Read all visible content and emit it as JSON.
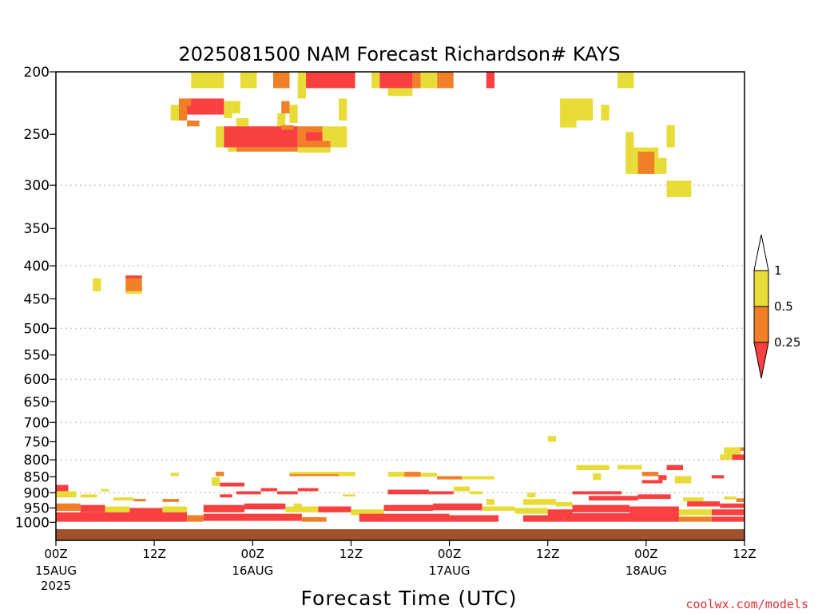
{
  "chart_data": {
    "type": "heatmap",
    "title": "2025081500 NAM Forecast Richardson# KAYS",
    "xlabel": "Forecast Time (UTC)",
    "ylabel": "",
    "y_scale": "log-pressure",
    "y_axis_unit_implied": "hPa",
    "ylim": [
      1025,
      200
    ],
    "xlim_hours": [
      0,
      84
    ],
    "grid": "horizontal dotted at 300, 400, 500, 600, 700, 800, 900 hPa",
    "y_ticks": [
      200,
      250,
      300,
      350,
      400,
      450,
      500,
      550,
      600,
      650,
      700,
      750,
      800,
      850,
      900,
      950,
      1000
    ],
    "x_ticks": [
      {
        "hour": 0,
        "label": "00Z",
        "sub": "15AUG",
        "sub2": "2025"
      },
      {
        "hour": 12,
        "label": "12Z",
        "sub": "",
        "sub2": ""
      },
      {
        "hour": 24,
        "label": "00Z",
        "sub": "16AUG",
        "sub2": ""
      },
      {
        "hour": 36,
        "label": "12Z",
        "sub": "",
        "sub2": ""
      },
      {
        "hour": 48,
        "label": "00Z",
        "sub": "17AUG",
        "sub2": ""
      },
      {
        "hour": 60,
        "label": "12Z",
        "sub": "",
        "sub2": ""
      },
      {
        "hour": 72,
        "label": "00Z",
        "sub": "18AUG",
        "sub2": ""
      },
      {
        "hour": 84,
        "label": "12Z",
        "sub": "",
        "sub2": ""
      }
    ],
    "colorbar": {
      "labels": [
        "1",
        "0.5",
        "0.25"
      ],
      "bins": [
        {
          "range": "<0.25",
          "color": "#f84040"
        },
        {
          "range": "0.25-0.5",
          "color": "#f08028"
        },
        {
          "range": "0.5-1",
          "color": "#e8dc38"
        },
        {
          "range": ">1",
          "color": "#ffffff"
        }
      ]
    },
    "ground_color": "#a0522d",
    "cells": [
      {
        "h0": 16.5,
        "h1": 20.5,
        "p0": 200,
        "p1": 212,
        "c": "y"
      },
      {
        "h0": 22.5,
        "h1": 24.5,
        "p0": 200,
        "p1": 212,
        "c": "y"
      },
      {
        "h0": 26.5,
        "h1": 28.5,
        "p0": 200,
        "p1": 212,
        "c": "o"
      },
      {
        "h0": 29.5,
        "h1": 30.5,
        "p0": 200,
        "p1": 212,
        "c": "y"
      },
      {
        "h0": 30.5,
        "h1": 36.5,
        "p0": 200,
        "p1": 212,
        "c": "r"
      },
      {
        "h0": 38.5,
        "h1": 39.5,
        "p0": 200,
        "p1": 212,
        "c": "y"
      },
      {
        "h0": 39.5,
        "h1": 43.5,
        "p0": 200,
        "p1": 212,
        "c": "r"
      },
      {
        "h0": 43.5,
        "h1": 44.5,
        "p0": 200,
        "p1": 212,
        "c": "o"
      },
      {
        "h0": 44.5,
        "h1": 46.5,
        "p0": 200,
        "p1": 212,
        "c": "y"
      },
      {
        "h0": 46.5,
        "h1": 48.5,
        "p0": 200,
        "p1": 212,
        "c": "o"
      },
      {
        "h0": 52.5,
        "h1": 53.5,
        "p0": 200,
        "p1": 212,
        "c": "r"
      },
      {
        "h0": 68.5,
        "h1": 70.5,
        "p0": 200,
        "p1": 212,
        "c": "y"
      },
      {
        "h0": 29.5,
        "h1": 30.5,
        "p0": 212,
        "p1": 220,
        "c": "y"
      },
      {
        "h0": 40.5,
        "h1": 43.5,
        "p0": 212,
        "p1": 218,
        "c": "y"
      },
      {
        "h0": 15.5,
        "h1": 19.5,
        "p0": 220,
        "p1": 233,
        "c": "r"
      },
      {
        "h0": 15.0,
        "h1": 16.5,
        "p0": 220,
        "p1": 226,
        "c": "o"
      },
      {
        "h0": 19.5,
        "h1": 20.5,
        "p0": 220,
        "p1": 233,
        "c": "r"
      },
      {
        "h0": 14.0,
        "h1": 15.0,
        "p0": 225,
        "p1": 238,
        "c": "y"
      },
      {
        "h0": 15.0,
        "h1": 16.0,
        "p0": 225,
        "p1": 238,
        "c": "o"
      },
      {
        "h0": 16.0,
        "h1": 17.5,
        "p0": 238,
        "p1": 243,
        "c": "o"
      },
      {
        "h0": 20.5,
        "h1": 21.5,
        "p0": 222,
        "p1": 236,
        "c": "y"
      },
      {
        "h0": 21.5,
        "h1": 22.5,
        "p0": 222,
        "p1": 232,
        "c": "y"
      },
      {
        "h0": 22.0,
        "h1": 23.5,
        "p0": 236,
        "p1": 243,
        "c": "y"
      },
      {
        "h0": 27.5,
        "h1": 28.5,
        "p0": 222,
        "p1": 232,
        "c": "o"
      },
      {
        "h0": 27.0,
        "h1": 28.0,
        "p0": 232,
        "p1": 243,
        "c": "y"
      },
      {
        "h0": 28.5,
        "h1": 29.5,
        "p0": 225,
        "p1": 240,
        "c": "y"
      },
      {
        "h0": 34.5,
        "h1": 35.5,
        "p0": 220,
        "p1": 238,
        "c": "y"
      },
      {
        "h0": 61.5,
        "h1": 65.5,
        "p0": 220,
        "p1": 238,
        "c": "y"
      },
      {
        "h0": 61.5,
        "h1": 63.5,
        "p0": 238,
        "p1": 244,
        "c": "y"
      },
      {
        "h0": 66.5,
        "h1": 67.5,
        "p0": 225,
        "p1": 238,
        "c": "y"
      },
      {
        "h0": 19.5,
        "h1": 20.5,
        "p0": 243,
        "p1": 262,
        "c": "y"
      },
      {
        "h0": 20.5,
        "h1": 29.5,
        "p0": 243,
        "p1": 262,
        "c": "r"
      },
      {
        "h0": 22.0,
        "h1": 29.5,
        "p0": 262,
        "p1": 266,
        "c": "o"
      },
      {
        "h0": 21.0,
        "h1": 22.0,
        "p0": 262,
        "p1": 266,
        "c": "y"
      },
      {
        "h0": 27.5,
        "h1": 29.0,
        "p0": 242,
        "p1": 246,
        "c": "o"
      },
      {
        "h0": 29.5,
        "h1": 30.5,
        "p0": 243,
        "p1": 262,
        "c": "o"
      },
      {
        "h0": 30.5,
        "h1": 32.5,
        "p0": 248,
        "p1": 256,
        "c": "r"
      },
      {
        "h0": 30.5,
        "h1": 33.5,
        "p0": 256,
        "p1": 262,
        "c": "o"
      },
      {
        "h0": 30.5,
        "h1": 32.5,
        "p0": 243,
        "p1": 248,
        "c": "o"
      },
      {
        "h0": 32.5,
        "h1": 34.5,
        "p0": 243,
        "p1": 256,
        "c": "y"
      },
      {
        "h0": 33.5,
        "h1": 34.5,
        "p0": 256,
        "p1": 262,
        "c": "y"
      },
      {
        "h0": 34.5,
        "h1": 35.5,
        "p0": 243,
        "p1": 262,
        "c": "y"
      },
      {
        "h0": 29.5,
        "h1": 33.5,
        "p0": 262,
        "p1": 267,
        "c": "y"
      },
      {
        "h0": 69.5,
        "h1": 70.5,
        "p0": 248,
        "p1": 288,
        "c": "y"
      },
      {
        "h0": 70.5,
        "h1": 73.5,
        "p0": 262,
        "p1": 288,
        "c": "y"
      },
      {
        "h0": 71.0,
        "h1": 73.0,
        "p0": 266,
        "p1": 288,
        "c": "o"
      },
      {
        "h0": 73.5,
        "h1": 74.5,
        "p0": 272,
        "p1": 288,
        "c": "y"
      },
      {
        "h0": 74.5,
        "h1": 75.5,
        "p0": 242,
        "p1": 262,
        "c": "y"
      },
      {
        "h0": 74.5,
        "h1": 77.5,
        "p0": 295,
        "p1": 313,
        "c": "y"
      },
      {
        "h0": 4.5,
        "h1": 5.5,
        "p0": 418,
        "p1": 438,
        "c": "y"
      },
      {
        "h0": 8.5,
        "h1": 10.5,
        "p0": 418,
        "p1": 438,
        "c": "o"
      },
      {
        "h0": 8.5,
        "h1": 10.5,
        "p0": 414,
        "p1": 418,
        "c": "r"
      },
      {
        "h0": 8.5,
        "h1": 10.5,
        "p0": 438,
        "p1": 442,
        "c": "y"
      },
      {
        "h0": 60.0,
        "h1": 61.0,
        "p0": 735,
        "p1": 750,
        "c": "y"
      },
      {
        "h0": 81.5,
        "h1": 83.5,
        "p0": 765,
        "p1": 785,
        "c": "y"
      },
      {
        "h0": 83.5,
        "h1": 84.0,
        "p0": 765,
        "p1": 775,
        "c": "o"
      },
      {
        "h0": 81.0,
        "h1": 82.5,
        "p0": 785,
        "p1": 800,
        "c": "y"
      },
      {
        "h0": 82.5,
        "h1": 84.0,
        "p0": 785,
        "p1": 800,
        "c": "r"
      },
      {
        "h0": 63.5,
        "h1": 67.5,
        "p0": 815,
        "p1": 830,
        "c": "y"
      },
      {
        "h0": 68.5,
        "h1": 71.5,
        "p0": 815,
        "p1": 828,
        "c": "y"
      },
      {
        "h0": 74.5,
        "h1": 76.5,
        "p0": 815,
        "p1": 830,
        "c": "r"
      },
      {
        "h0": 65.5,
        "h1": 66.5,
        "p0": 840,
        "p1": 860,
        "c": "y"
      },
      {
        "h0": 14.0,
        "h1": 15.0,
        "p0": 838,
        "p1": 848,
        "c": "y"
      },
      {
        "h0": 19.0,
        "h1": 20.0,
        "p0": 852,
        "p1": 878,
        "c": "y"
      },
      {
        "h0": 19.5,
        "h1": 20.5,
        "p0": 835,
        "p1": 848,
        "c": "o"
      },
      {
        "h0": 28.5,
        "h1": 36.5,
        "p0": 835,
        "p1": 842,
        "c": "y"
      },
      {
        "h0": 28.5,
        "h1": 34.5,
        "p0": 842,
        "p1": 848,
        "c": "o"
      },
      {
        "h0": 34.5,
        "h1": 36.5,
        "p0": 840,
        "p1": 848,
        "c": "y"
      },
      {
        "h0": 40.5,
        "h1": 42.5,
        "p0": 835,
        "p1": 850,
        "c": "y"
      },
      {
        "h0": 42.5,
        "h1": 44.5,
        "p0": 835,
        "p1": 850,
        "c": "o"
      },
      {
        "h0": 44.5,
        "h1": 46.5,
        "p0": 838,
        "p1": 850,
        "c": "y"
      },
      {
        "h0": 46.5,
        "h1": 49.5,
        "p0": 848,
        "p1": 858,
        "c": "o"
      },
      {
        "h0": 49.5,
        "h1": 53.5,
        "p0": 848,
        "p1": 858,
        "c": "y"
      },
      {
        "h0": 71.5,
        "h1": 73.5,
        "p0": 835,
        "p1": 848,
        "c": "o"
      },
      {
        "h0": 73.5,
        "h1": 74.5,
        "p0": 845,
        "p1": 860,
        "c": "r"
      },
      {
        "h0": 75.5,
        "h1": 77.5,
        "p0": 848,
        "p1": 870,
        "c": "y"
      },
      {
        "h0": 80.0,
        "h1": 81.5,
        "p0": 845,
        "p1": 855,
        "c": "r"
      },
      {
        "h0": 71.5,
        "h1": 74.0,
        "p0": 860,
        "p1": 870,
        "c": "r"
      },
      {
        "h0": 0.0,
        "h1": 1.5,
        "p0": 875,
        "p1": 895,
        "c": "r"
      },
      {
        "h0": 0.0,
        "h1": 2.5,
        "p0": 895,
        "p1": 915,
        "c": "y"
      },
      {
        "h0": 3.0,
        "h1": 5.0,
        "p0": 905,
        "p1": 915,
        "c": "y"
      },
      {
        "h0": 5.5,
        "h1": 6.5,
        "p0": 888,
        "p1": 895,
        "c": "y"
      },
      {
        "h0": 7.0,
        "h1": 9.5,
        "p0": 915,
        "p1": 925,
        "c": "y"
      },
      {
        "h0": 9.5,
        "h1": 11.0,
        "p0": 920,
        "p1": 928,
        "c": "o"
      },
      {
        "h0": 13.0,
        "h1": 15.0,
        "p0": 920,
        "p1": 930,
        "c": "o"
      },
      {
        "h0": 20.0,
        "h1": 23.0,
        "p0": 868,
        "p1": 880,
        "c": "r"
      },
      {
        "h0": 20.0,
        "h1": 21.5,
        "p0": 905,
        "p1": 915,
        "c": "r"
      },
      {
        "h0": 22.0,
        "h1": 25.0,
        "p0": 895,
        "p1": 905,
        "c": "r"
      },
      {
        "h0": 25.0,
        "h1": 27.0,
        "p0": 885,
        "p1": 895,
        "c": "r"
      },
      {
        "h0": 27.0,
        "h1": 29.5,
        "p0": 895,
        "p1": 905,
        "c": "r"
      },
      {
        "h0": 29.5,
        "h1": 32.0,
        "p0": 885,
        "p1": 895,
        "c": "r"
      },
      {
        "h0": 35.0,
        "h1": 36.5,
        "p0": 905,
        "p1": 912,
        "c": "y"
      },
      {
        "h0": 29.0,
        "h1": 30.0,
        "p0": 935,
        "p1": 960,
        "c": "y"
      },
      {
        "h0": 40.5,
        "h1": 45.5,
        "p0": 890,
        "p1": 905,
        "c": "r"
      },
      {
        "h0": 45.5,
        "h1": 48.5,
        "p0": 895,
        "p1": 905,
        "c": "r"
      },
      {
        "h0": 48.5,
        "h1": 50.5,
        "p0": 880,
        "p1": 895,
        "c": "y"
      },
      {
        "h0": 50.5,
        "h1": 52.0,
        "p0": 895,
        "p1": 905,
        "c": "y"
      },
      {
        "h0": 52.5,
        "h1": 53.5,
        "p0": 920,
        "p1": 940,
        "c": "y"
      },
      {
        "h0": 57.5,
        "h1": 58.5,
        "p0": 900,
        "p1": 915,
        "c": "y"
      },
      {
        "h0": 57.0,
        "h1": 61.0,
        "p0": 920,
        "p1": 940,
        "c": "y"
      },
      {
        "h0": 61.0,
        "h1": 63.0,
        "p0": 930,
        "p1": 945,
        "c": "y"
      },
      {
        "h0": 63.0,
        "h1": 69.0,
        "p0": 895,
        "p1": 905,
        "c": "r"
      },
      {
        "h0": 65.0,
        "h1": 71.0,
        "p0": 910,
        "p1": 925,
        "c": "r"
      },
      {
        "h0": 71.0,
        "h1": 75.0,
        "p0": 905,
        "p1": 920,
        "c": "r"
      },
      {
        "h0": 76.5,
        "h1": 79.0,
        "p0": 915,
        "p1": 928,
        "c": "y"
      },
      {
        "h0": 77.0,
        "h1": 81.0,
        "p0": 928,
        "p1": 945,
        "c": "r"
      },
      {
        "h0": 81.0,
        "h1": 84.0,
        "p0": 935,
        "p1": 950,
        "c": "r"
      },
      {
        "h0": 81.5,
        "h1": 83.0,
        "p0": 912,
        "p1": 922,
        "c": "y"
      },
      {
        "h0": 83.0,
        "h1": 84.0,
        "p0": 918,
        "p1": 930,
        "c": "o"
      },
      {
        "h0": 0.0,
        "h1": 3.0,
        "p0": 935,
        "p1": 960,
        "c": "o"
      },
      {
        "h0": 3.0,
        "h1": 6.0,
        "p0": 940,
        "p1": 965,
        "c": "r"
      },
      {
        "h0": 6.0,
        "h1": 9.0,
        "p0": 945,
        "p1": 965,
        "c": "y"
      },
      {
        "h0": 9.0,
        "h1": 13.0,
        "p0": 950,
        "p1": 970,
        "c": "r"
      },
      {
        "h0": 13.0,
        "h1": 16.0,
        "p0": 945,
        "p1": 965,
        "c": "y"
      },
      {
        "h0": 18.0,
        "h1": 23.0,
        "p0": 940,
        "p1": 965,
        "c": "r"
      },
      {
        "h0": 23.0,
        "h1": 28.0,
        "p0": 935,
        "p1": 955,
        "c": "r"
      },
      {
        "h0": 28.0,
        "h1": 32.0,
        "p0": 945,
        "p1": 965,
        "c": "y"
      },
      {
        "h0": 32.0,
        "h1": 36.0,
        "p0": 945,
        "p1": 965,
        "c": "r"
      },
      {
        "h0": 36.0,
        "h1": 40.0,
        "p0": 955,
        "p1": 975,
        "c": "y"
      },
      {
        "h0": 40.0,
        "h1": 46.0,
        "p0": 940,
        "p1": 960,
        "c": "r"
      },
      {
        "h0": 46.0,
        "h1": 52.0,
        "p0": 935,
        "p1": 958,
        "c": "r"
      },
      {
        "h0": 52.0,
        "h1": 56.0,
        "p0": 945,
        "p1": 960,
        "c": "y"
      },
      {
        "h0": 56.0,
        "h1": 60.0,
        "p0": 950,
        "p1": 970,
        "c": "y"
      },
      {
        "h0": 60.0,
        "h1": 63.0,
        "p0": 955,
        "p1": 975,
        "c": "r"
      },
      {
        "h0": 63.0,
        "h1": 70.0,
        "p0": 940,
        "p1": 965,
        "c": "r"
      },
      {
        "h0": 70.0,
        "h1": 76.0,
        "p0": 945,
        "p1": 968,
        "c": "r"
      },
      {
        "h0": 76.0,
        "h1": 80.0,
        "p0": 955,
        "p1": 975,
        "c": "y"
      },
      {
        "h0": 80.0,
        "h1": 84.0,
        "p0": 955,
        "p1": 975,
        "c": "r"
      },
      {
        "h0": 0.0,
        "h1": 16.0,
        "p0": 965,
        "p1": 998,
        "c": "r"
      },
      {
        "h0": 16.0,
        "h1": 18.0,
        "p0": 975,
        "p1": 998,
        "c": "o"
      },
      {
        "h0": 18.0,
        "h1": 30.0,
        "p0": 970,
        "p1": 995,
        "c": "r"
      },
      {
        "h0": 30.0,
        "h1": 33.0,
        "p0": 982,
        "p1": 998,
        "c": "o"
      },
      {
        "h0": 37.0,
        "h1": 48.0,
        "p0": 970,
        "p1": 998,
        "c": "r"
      },
      {
        "h0": 48.0,
        "h1": 54.0,
        "p0": 975,
        "p1": 998,
        "c": "r"
      },
      {
        "h0": 57.0,
        "h1": 62.0,
        "p0": 975,
        "p1": 998,
        "c": "r"
      },
      {
        "h0": 62.0,
        "h1": 76.0,
        "p0": 968,
        "p1": 998,
        "c": "r"
      },
      {
        "h0": 76.0,
        "h1": 80.0,
        "p0": 980,
        "p1": 998,
        "c": "o"
      },
      {
        "h0": 80.0,
        "h1": 84.0,
        "p0": 980,
        "p1": 998,
        "c": "r"
      }
    ]
  },
  "credit": "coolwx.com/models"
}
